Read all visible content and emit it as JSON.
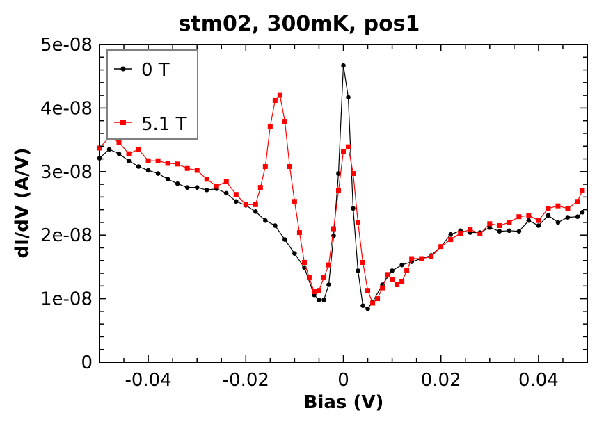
{
  "chart_data": {
    "type": "line",
    "title": "stm02, 300mK, pos1",
    "xlabel": "Bias (V)",
    "ylabel": "dI/dV (A/V)",
    "xlim": [
      -0.05,
      0.05
    ],
    "ylim": [
      0,
      5e-08
    ],
    "grid": false,
    "legend_position": "top-left",
    "x_ticks": [
      -0.04,
      -0.02,
      0,
      0.02,
      0.04
    ],
    "x_tick_labels": [
      "-0.04",
      "-0.02",
      "0",
      "0.02",
      "0.04"
    ],
    "y_ticks": [
      0,
      1e-08,
      2e-08,
      3e-08,
      4e-08,
      5e-08
    ],
    "y_tick_labels": [
      "0",
      "1e-08",
      "2e-08",
      "3e-08",
      "4e-08",
      "5e-08"
    ],
    "y_unit_scale": 1e-08,
    "series": [
      {
        "name": "0 T",
        "color": "#000000",
        "marker": "circle",
        "x": [
          -0.05,
          -0.048,
          -0.046,
          -0.044,
          -0.042,
          -0.04,
          -0.038,
          -0.036,
          -0.034,
          -0.032,
          -0.03,
          -0.028,
          -0.026,
          -0.024,
          -0.022,
          -0.02,
          -0.018,
          -0.016,
          -0.014,
          -0.012,
          -0.01,
          -0.008,
          -0.006,
          -0.005,
          -0.004,
          -0.003,
          -0.002,
          -0.001,
          0.0,
          0.001,
          0.002,
          0.003,
          0.004,
          0.005,
          0.006,
          0.008,
          0.01,
          0.012,
          0.014,
          0.016,
          0.018,
          0.02,
          0.022,
          0.024,
          0.026,
          0.028,
          0.03,
          0.032,
          0.034,
          0.036,
          0.038,
          0.04,
          0.042,
          0.044,
          0.046,
          0.048,
          0.049
        ],
        "values_e8": [
          3.21,
          3.35,
          3.28,
          3.17,
          3.08,
          3.02,
          2.97,
          2.88,
          2.81,
          2.75,
          2.75,
          2.71,
          2.73,
          2.66,
          2.53,
          2.47,
          2.37,
          2.23,
          2.15,
          1.93,
          1.71,
          1.49,
          1.06,
          0.98,
          0.98,
          1.22,
          1.99,
          2.97,
          4.67,
          4.17,
          2.42,
          1.44,
          0.89,
          0.84,
          0.95,
          1.22,
          1.44,
          1.53,
          1.58,
          1.63,
          1.68,
          1.82,
          2.01,
          2.07,
          2.04,
          2.04,
          2.12,
          2.06,
          2.07,
          2.06,
          2.23,
          2.15,
          2.31,
          2.2,
          2.28,
          2.29,
          2.36
        ]
      },
      {
        "name": "5.1 T",
        "color": "#ff0000",
        "marker": "square",
        "x": [
          -0.05,
          -0.048,
          -0.046,
          -0.044,
          -0.042,
          -0.04,
          -0.038,
          -0.036,
          -0.034,
          -0.032,
          -0.03,
          -0.028,
          -0.026,
          -0.024,
          -0.022,
          -0.02,
          -0.018,
          -0.017,
          -0.016,
          -0.015,
          -0.014,
          -0.013,
          -0.012,
          -0.011,
          -0.01,
          -0.009,
          -0.008,
          -0.007,
          -0.006,
          -0.005,
          -0.004,
          -0.003,
          -0.002,
          -0.001,
          0.0,
          0.001,
          0.002,
          0.003,
          0.004,
          0.005,
          0.006,
          0.007,
          0.008,
          0.009,
          0.01,
          0.011,
          0.012,
          0.013,
          0.014,
          0.016,
          0.018,
          0.02,
          0.022,
          0.024,
          0.026,
          0.028,
          0.03,
          0.032,
          0.034,
          0.036,
          0.038,
          0.04,
          0.042,
          0.044,
          0.046,
          0.048,
          0.049
        ],
        "values_e8": [
          3.37,
          3.54,
          3.46,
          3.28,
          3.35,
          3.17,
          3.17,
          3.13,
          3.12,
          3.05,
          3.02,
          2.88,
          2.77,
          2.84,
          2.64,
          2.48,
          2.48,
          2.75,
          3.08,
          3.71,
          4.12,
          4.2,
          3.79,
          3.08,
          2.53,
          2.04,
          1.57,
          1.33,
          1.11,
          1.13,
          1.33,
          1.53,
          2.1,
          2.7,
          3.32,
          3.39,
          2.97,
          2.2,
          1.57,
          1.13,
          0.93,
          1.0,
          1.17,
          1.38,
          1.3,
          1.22,
          1.27,
          1.44,
          1.63,
          1.63,
          1.66,
          1.82,
          1.93,
          2.03,
          2.09,
          2.02,
          2.18,
          2.15,
          2.2,
          2.29,
          2.31,
          2.23,
          2.42,
          2.46,
          2.42,
          2.53,
          2.7
        ]
      }
    ]
  }
}
